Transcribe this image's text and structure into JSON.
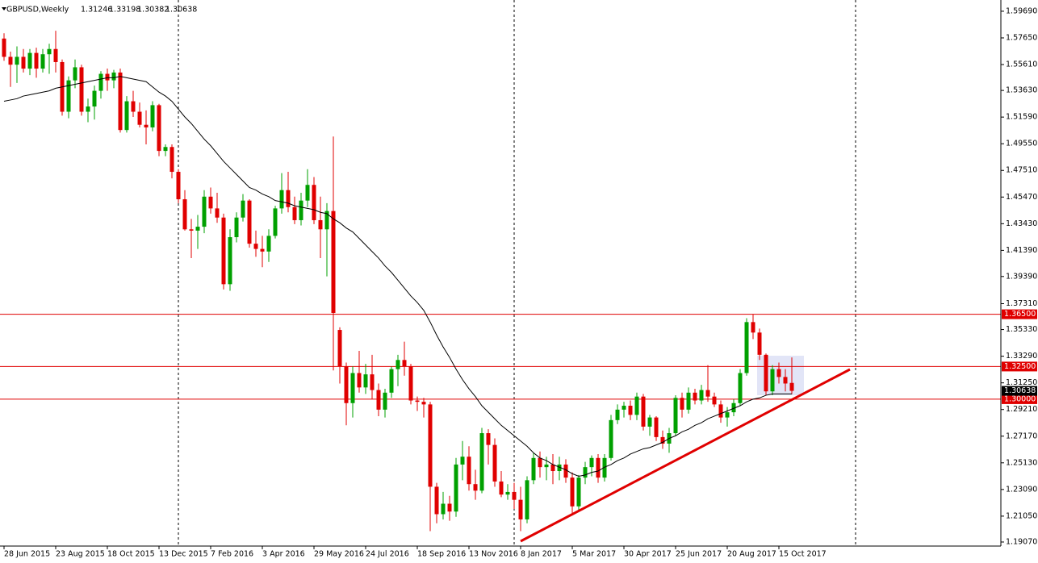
{
  "chart_data": {
    "type": "candlestick",
    "title": "GBPUSD,Weekly",
    "ylim": [
      1.1876,
      1.6055
    ],
    "yticks": [
      {
        "value": 1.5969,
        "label": "1.59690"
      },
      {
        "value": 1.5765,
        "label": "1.57650"
      },
      {
        "value": 1.5561,
        "label": "1.55610"
      },
      {
        "value": 1.5363,
        "label": "1.53630"
      },
      {
        "value": 1.5159,
        "label": "1.51590"
      },
      {
        "value": 1.4955,
        "label": "1.49550"
      },
      {
        "value": 1.4751,
        "label": "1.47510"
      },
      {
        "value": 1.4547,
        "label": "1.45470"
      },
      {
        "value": 1.4343,
        "label": "1.43430"
      },
      {
        "value": 1.4139,
        "label": "1.41390"
      },
      {
        "value": 1.3939,
        "label": "1.39390"
      },
      {
        "value": 1.3731,
        "label": "1.37310"
      },
      {
        "value": 1.3533,
        "label": "1.35330"
      },
      {
        "value": 1.3329,
        "label": "1.33290"
      },
      {
        "value": 1.3125,
        "label": "1.31250"
      },
      {
        "value": 1.2921,
        "label": "1.29210"
      },
      {
        "value": 1.2717,
        "label": "1.27170"
      },
      {
        "value": 1.2513,
        "label": "1.25130"
      },
      {
        "value": 1.2309,
        "label": "1.23090"
      },
      {
        "value": 1.2105,
        "label": "1.21050"
      },
      {
        "value": 1.1907,
        "label": "1.19070"
      }
    ],
    "levels": [
      {
        "value": 1.365,
        "label": "1.36500"
      },
      {
        "value": 1.325,
        "label": "1.32500"
      },
      {
        "value": 1.3,
        "label": "1.30000"
      }
    ],
    "level_color": "#e00000",
    "up_color": "#00a000",
    "down_color": "#e00000",
    "ma_color": "#000000",
    "categories": [
      "28 Jun 2015",
      null,
      null,
      null,
      null,
      null,
      null,
      null,
      "23 Aug 2015",
      null,
      null,
      null,
      null,
      null,
      null,
      null,
      "18 Oct 2015",
      null,
      null,
      null,
      null,
      null,
      null,
      null,
      "13 Dec 2015",
      null,
      null,
      null,
      null,
      null,
      null,
      null,
      "7 Feb 2016",
      null,
      null,
      null,
      null,
      null,
      null,
      null,
      "3 Apr 2016",
      null,
      null,
      null,
      null,
      null,
      null,
      null,
      "29 May 2016",
      null,
      null,
      null,
      null,
      null,
      null,
      null,
      "24 Jul 2016",
      null,
      null,
      null,
      null,
      null,
      null,
      null,
      "18 Sep 2016",
      null,
      null,
      null,
      null,
      null,
      null,
      null,
      "13 Nov 2016",
      null,
      null,
      null,
      null,
      null,
      null,
      null,
      "8 Jan 2017",
      null,
      null,
      null,
      null,
      null,
      null,
      null,
      "5 Mar 2017",
      null,
      null,
      null,
      null,
      null,
      null,
      null,
      "30 Apr 2017",
      null,
      null,
      null,
      null,
      null,
      null,
      null,
      "25 Jun 2017",
      null,
      null,
      null,
      null,
      null,
      null,
      null,
      "20 Aug 2017",
      null,
      null,
      null,
      null,
      null,
      null,
      null,
      "15 Oct 2017",
      null,
      null
    ],
    "candles": [
      [
        1.576,
        1.58,
        1.559,
        1.562
      ],
      [
        1.562,
        1.566,
        1.539,
        1.556
      ],
      [
        1.556,
        1.57,
        1.542,
        1.562
      ],
      [
        1.562,
        1.568,
        1.55,
        1.553
      ],
      [
        1.553,
        1.568,
        1.548,
        1.565
      ],
      [
        1.565,
        1.569,
        1.546,
        1.553
      ],
      [
        1.553,
        1.568,
        1.55,
        1.564
      ],
      [
        1.564,
        1.572,
        1.549,
        1.568
      ],
      [
        1.568,
        1.582,
        1.55,
        1.558
      ],
      [
        1.558,
        1.56,
        1.517,
        1.52
      ],
      [
        1.52,
        1.547,
        1.515,
        1.544
      ],
      [
        1.544,
        1.56,
        1.538,
        1.554
      ],
      [
        1.554,
        1.556,
        1.517,
        1.52
      ],
      [
        1.52,
        1.53,
        1.512,
        1.524
      ],
      [
        1.524,
        1.54,
        1.514,
        1.536
      ],
      [
        1.536,
        1.551,
        1.53,
        1.549
      ],
      [
        1.549,
        1.553,
        1.536,
        1.544
      ],
      [
        1.544,
        1.552,
        1.538,
        1.55
      ],
      [
        1.55,
        1.553,
        1.504,
        1.506
      ],
      [
        1.506,
        1.532,
        1.504,
        1.528
      ],
      [
        1.528,
        1.536,
        1.516,
        1.52
      ],
      [
        1.52,
        1.527,
        1.508,
        1.51
      ],
      [
        1.51,
        1.521,
        1.495,
        1.508
      ],
      [
        1.508,
        1.528,
        1.505,
        1.525
      ],
      [
        1.525,
        1.526,
        1.486,
        1.49
      ],
      [
        1.49,
        1.495,
        1.486,
        1.493
      ],
      [
        1.493,
        1.495,
        1.469,
        1.474
      ],
      [
        1.474,
        1.476,
        1.45,
        1.453
      ],
      [
        1.453,
        1.46,
        1.429,
        1.43
      ],
      [
        1.43,
        1.438,
        1.408,
        1.429
      ],
      [
        1.429,
        1.441,
        1.415,
        1.432
      ],
      [
        1.432,
        1.46,
        1.427,
        1.455
      ],
      [
        1.455,
        1.462,
        1.442,
        1.446
      ],
      [
        1.446,
        1.458,
        1.435,
        1.439
      ],
      [
        1.439,
        1.442,
        1.384,
        1.388
      ],
      [
        1.388,
        1.43,
        1.383,
        1.424
      ],
      [
        1.424,
        1.443,
        1.42,
        1.439
      ],
      [
        1.439,
        1.457,
        1.436,
        1.452
      ],
      [
        1.452,
        1.453,
        1.416,
        1.419
      ],
      [
        1.419,
        1.429,
        1.409,
        1.415
      ],
      [
        1.415,
        1.425,
        1.401,
        1.413
      ],
      [
        1.413,
        1.43,
        1.405,
        1.425
      ],
      [
        1.425,
        1.448,
        1.423,
        1.446
      ],
      [
        1.446,
        1.473,
        1.442,
        1.46
      ],
      [
        1.46,
        1.474,
        1.443,
        1.447
      ],
      [
        1.447,
        1.455,
        1.434,
        1.437
      ],
      [
        1.437,
        1.458,
        1.433,
        1.452
      ],
      [
        1.452,
        1.476,
        1.447,
        1.464
      ],
      [
        1.464,
        1.47,
        1.434,
        1.437
      ],
      [
        1.437,
        1.455,
        1.408,
        1.43
      ],
      [
        1.43,
        1.45,
        1.394,
        1.444
      ],
      [
        1.444,
        1.501,
        1.322,
        1.366
      ],
      [
        1.353,
        1.355,
        1.312,
        1.325
      ],
      [
        1.325,
        1.328,
        1.28,
        1.297
      ],
      [
        1.297,
        1.325,
        1.286,
        1.32
      ],
      [
        1.32,
        1.337,
        1.305,
        1.309
      ],
      [
        1.309,
        1.327,
        1.304,
        1.319
      ],
      [
        1.319,
        1.334,
        1.3,
        1.307
      ],
      [
        1.307,
        1.312,
        1.287,
        1.292
      ],
      [
        1.292,
        1.308,
        1.286,
        1.305
      ],
      [
        1.305,
        1.325,
        1.301,
        1.323
      ],
      [
        1.323,
        1.334,
        1.31,
        1.33
      ],
      [
        1.33,
        1.344,
        1.318,
        1.325
      ],
      [
        1.325,
        1.327,
        1.296,
        1.299
      ],
      [
        1.299,
        1.302,
        1.291,
        1.298
      ],
      [
        1.298,
        1.301,
        1.286,
        1.296
      ],
      [
        1.296,
        1.298,
        1.199,
        1.233
      ],
      [
        1.233,
        1.236,
        1.205,
        1.212
      ],
      [
        1.212,
        1.229,
        1.208,
        1.22
      ],
      [
        1.22,
        1.226,
        1.207,
        1.214
      ],
      [
        1.214,
        1.255,
        1.21,
        1.25
      ],
      [
        1.25,
        1.268,
        1.238,
        1.256
      ],
      [
        1.256,
        1.264,
        1.23,
        1.235
      ],
      [
        1.235,
        1.246,
        1.223,
        1.23
      ],
      [
        1.23,
        1.278,
        1.228,
        1.274
      ],
      [
        1.274,
        1.277,
        1.25,
        1.265
      ],
      [
        1.265,
        1.27,
        1.233,
        1.237
      ],
      [
        1.237,
        1.245,
        1.225,
        1.227
      ],
      [
        1.227,
        1.235,
        1.223,
        1.229
      ],
      [
        1.229,
        1.236,
        1.216,
        1.223
      ],
      [
        1.223,
        1.233,
        1.199,
        1.208
      ],
      [
        1.208,
        1.241,
        1.205,
        1.238
      ],
      [
        1.238,
        1.259,
        1.235,
        1.255
      ],
      [
        1.255,
        1.26,
        1.24,
        1.248
      ],
      [
        1.248,
        1.256,
        1.238,
        1.25
      ],
      [
        1.25,
        1.258,
        1.235,
        1.245
      ],
      [
        1.245,
        1.256,
        1.238,
        1.25
      ],
      [
        1.25,
        1.254,
        1.236,
        1.24
      ],
      [
        1.24,
        1.244,
        1.211,
        1.218
      ],
      [
        1.218,
        1.242,
        1.214,
        1.24
      ],
      [
        1.24,
        1.252,
        1.235,
        1.248
      ],
      [
        1.248,
        1.257,
        1.241,
        1.255
      ],
      [
        1.255,
        1.258,
        1.236,
        1.24
      ],
      [
        1.24,
        1.258,
        1.237,
        1.255
      ],
      [
        1.255,
        1.288,
        1.253,
        1.284
      ],
      [
        1.284,
        1.296,
        1.281,
        1.292
      ],
      [
        1.292,
        1.298,
        1.286,
        1.295
      ],
      [
        1.295,
        1.299,
        1.284,
        1.288
      ],
      [
        1.288,
        1.305,
        1.284,
        1.302
      ],
      [
        1.302,
        1.304,
        1.276,
        1.279
      ],
      [
        1.279,
        1.288,
        1.272,
        1.286
      ],
      [
        1.286,
        1.287,
        1.268,
        1.271
      ],
      [
        1.271,
        1.276,
        1.262,
        1.266
      ],
      [
        1.266,
        1.278,
        1.259,
        1.274
      ],
      [
        1.274,
        1.303,
        1.272,
        1.301
      ],
      [
        1.301,
        1.305,
        1.286,
        1.292
      ],
      [
        1.292,
        1.309,
        1.289,
        1.305
      ],
      [
        1.305,
        1.308,
        1.296,
        1.299
      ],
      [
        1.299,
        1.311,
        1.296,
        1.307
      ],
      [
        1.307,
        1.326,
        1.298,
        1.302
      ],
      [
        1.302,
        1.305,
        1.294,
        1.296
      ],
      [
        1.296,
        1.299,
        1.282,
        1.286
      ],
      [
        1.286,
        1.294,
        1.279,
        1.29
      ],
      [
        1.29,
        1.3,
        1.287,
        1.297
      ],
      [
        1.297,
        1.323,
        1.295,
        1.32
      ],
      [
        1.32,
        1.362,
        1.318,
        1.359
      ],
      [
        1.359,
        1.365,
        1.346,
        1.351
      ],
      [
        1.351,
        1.354,
        1.33,
        1.334
      ],
      [
        1.334,
        1.335,
        1.303,
        1.306
      ],
      [
        1.306,
        1.326,
        1.303,
        1.323
      ],
      [
        1.323,
        1.328,
        1.312,
        1.317
      ],
      [
        1.317,
        1.323,
        1.306,
        1.312
      ],
      [
        1.31246,
        1.33198,
        1.30382,
        1.30638
      ]
    ],
    "ma": [
      1.528,
      1.529,
      1.53,
      1.532,
      1.533,
      1.534,
      1.535,
      1.536,
      1.538,
      1.539,
      1.54,
      1.541,
      1.542,
      1.543,
      1.544,
      1.545,
      1.546,
      1.546,
      1.547,
      1.546,
      1.545,
      1.544,
      1.543,
      1.539,
      1.535,
      1.532,
      1.528,
      1.522,
      1.516,
      1.511,
      1.505,
      1.499,
      1.494,
      1.488,
      1.482,
      1.477,
      1.472,
      1.467,
      1.462,
      1.46,
      1.457,
      1.455,
      1.452,
      1.451,
      1.45,
      1.448,
      1.447,
      1.446,
      1.445,
      1.443,
      1.442,
      1.438,
      1.435,
      1.431,
      1.428,
      1.423,
      1.418,
      1.413,
      1.408,
      1.402,
      1.397,
      1.391,
      1.385,
      1.379,
      1.374,
      1.368,
      1.359,
      1.349,
      1.34,
      1.332,
      1.323,
      1.315,
      1.308,
      1.302,
      1.295,
      1.29,
      1.285,
      1.28,
      1.276,
      1.272,
      1.268,
      1.264,
      1.259,
      1.255,
      1.253,
      1.25,
      1.248,
      1.246,
      1.243,
      1.241,
      1.242,
      1.244,
      1.245,
      1.248,
      1.25,
      1.253,
      1.255,
      1.258,
      1.26,
      1.262,
      1.263,
      1.265,
      1.267,
      1.27,
      1.272,
      1.275,
      1.277,
      1.28,
      1.282,
      1.285,
      1.287,
      1.289,
      1.291,
      1.293,
      1.295,
      1.298,
      1.3,
      1.301,
      1.303,
      1.304,
      1.304,
      1.304,
      1.304
    ]
  }
}
